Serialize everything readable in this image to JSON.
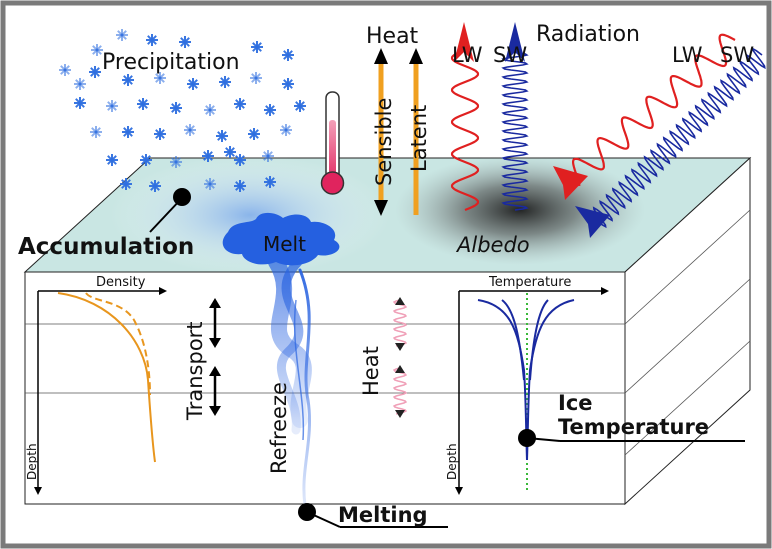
{
  "labels": {
    "precipitation": "Precipitation",
    "heat_top": "Heat",
    "sensible": "Sensible",
    "latent": "Latent",
    "radiation": "Radiation",
    "lw_1": "LW",
    "sw_1": "SW",
    "lw_2": "LW",
    "sw_2": "SW",
    "accumulation": "Accumulation",
    "melt": "Melt",
    "albedo": "Albedo",
    "density": "Density",
    "depth_left": "Depth",
    "transport": "Transport",
    "refreeze": "Refreeze",
    "heat_mid": "Heat",
    "temperature": "Temperature",
    "depth_right": "Depth",
    "ice_temperature_1": "Ice",
    "ice_temperature_2": "Temperature",
    "melting": "Melting"
  },
  "colors": {
    "frame_border": "#7a7a7a",
    "surface": "#c9e6e3",
    "snowflake": "#2f6fe0",
    "heat_arrow": "#f0a020",
    "lw": "#e02020",
    "sw": "#1a2aa0",
    "meltwater": "#2a64e0",
    "density_curve": "#e8961e",
    "temp_curve": "#1a2aa0",
    "heat_wave": "#f0a0b8",
    "freezing_line": "#3ab83a",
    "thermometer": "#e0245e"
  },
  "icons": [
    "snowflake-icon",
    "thermometer-icon",
    "double-arrow-icon"
  ]
}
